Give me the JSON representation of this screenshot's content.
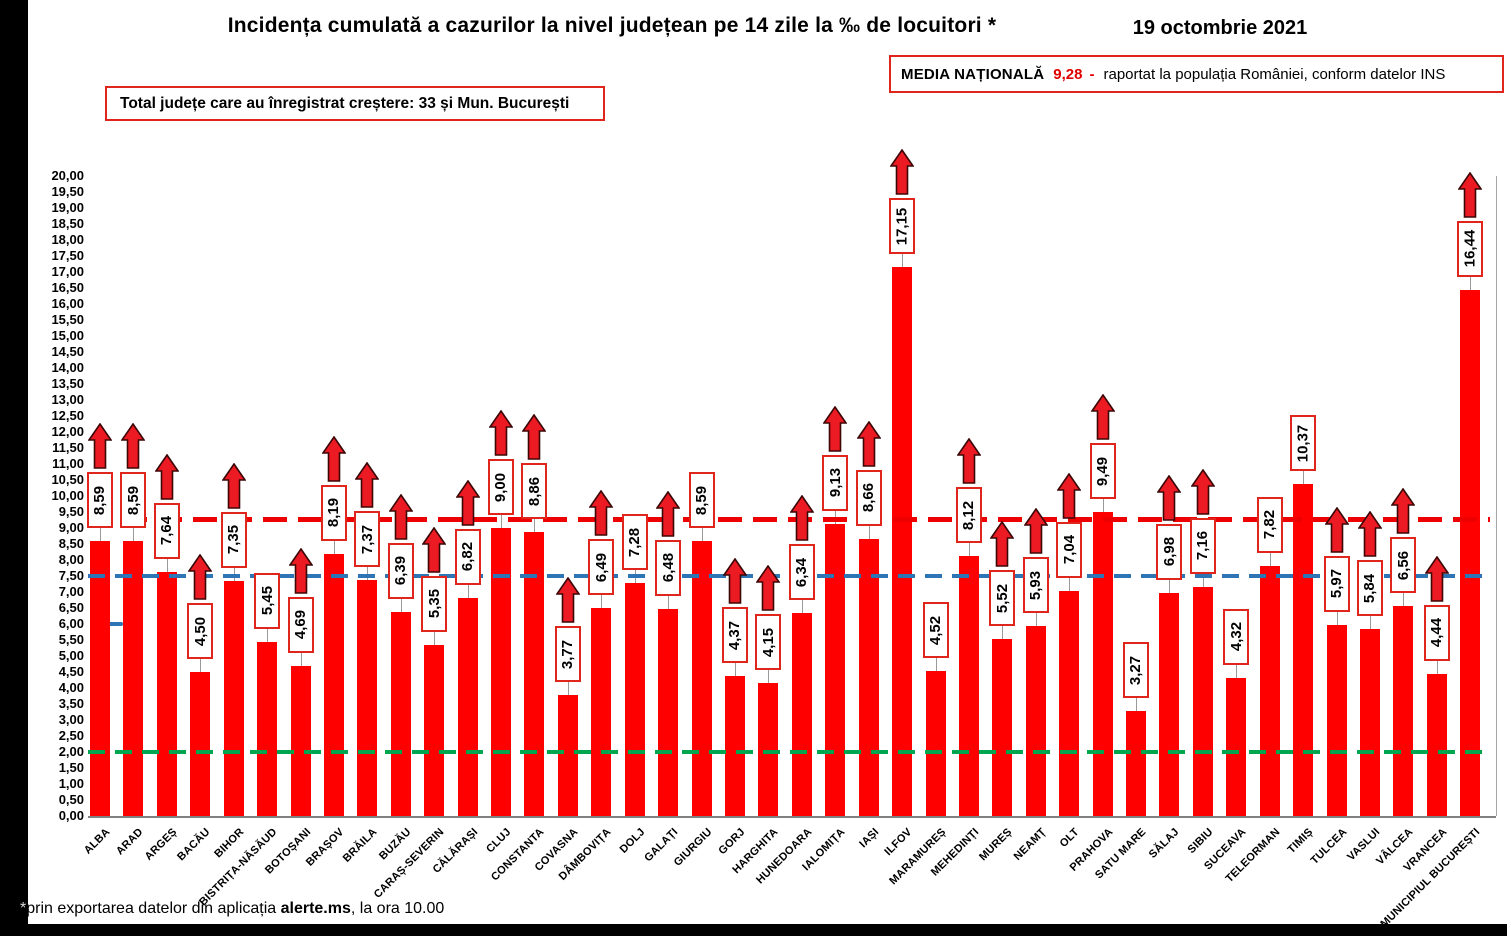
{
  "page": {
    "title": "Incidența cumulată a cazurilor la nivel județean pe 14 zile la ‰ de locuitori *",
    "date": "19 octombrie 2021",
    "national_average": {
      "label": "MEDIA NAȚIONALĂ",
      "value": "9,28",
      "dash": "-",
      "description": "raportat la populația României, conform datelor INS"
    },
    "growth_note": "Total județe care au înregistrat creștere:  33 și Mun. București",
    "footnote_star": "*",
    "footnote_prefix": "prin exportarea datelor din aplicația ",
    "footnote_app": "alerte.ms",
    "footnote_suffix": ", la ora 10.00"
  },
  "chart_data": {
    "type": "bar",
    "title": "Incidența cumulată a cazurilor la nivel județean pe 14 zile la ‰ de locuitori *",
    "categories": [
      "ALBA",
      "ARAD",
      "ARGEȘ",
      "BACĂU",
      "BIHOR",
      "BISTRIȚA-NĂSĂUD",
      "BOTOȘANI",
      "BRAȘOV",
      "BRĂILA",
      "BUZĂU",
      "CARAȘ-SEVERIN",
      "CĂLĂRAȘI",
      "CLUJ",
      "CONSTANTA",
      "COVASNA",
      "DÂMBOVIȚA",
      "DOLJ",
      "GALAȚI",
      "GIURGIU",
      "GORJ",
      "HARGHITA",
      "HUNEDOARA",
      "IALOMIȚA",
      "IAȘI",
      "ILFOV",
      "MARAMUREȘ",
      "MEHEDINȚI",
      "MUREȘ",
      "NEAMȚ",
      "OLT",
      "PRAHOVA",
      "SATU MARE",
      "SĂLAJ",
      "SIBIU",
      "SUCEAVA",
      "TELEORMAN",
      "TIMIȘ",
      "TULCEA",
      "VASLUI",
      "VÂLCEA",
      "VRANCEA",
      "MUNICIPIUL BUCUREȘTI"
    ],
    "values": [
      8.59,
      8.59,
      7.64,
      4.5,
      7.35,
      5.45,
      4.69,
      8.19,
      7.37,
      6.39,
      5.35,
      6.82,
      9.0,
      8.86,
      3.77,
      6.49,
      7.28,
      6.48,
      8.59,
      4.37,
      4.15,
      6.34,
      9.13,
      8.66,
      17.15,
      4.52,
      8.12,
      5.52,
      5.93,
      7.04,
      9.49,
      3.27,
      6.98,
      7.16,
      4.32,
      7.82,
      10.37,
      5.97,
      5.84,
      6.56,
      4.44,
      16.44
    ],
    "value_labels": [
      "8,59",
      "8,59",
      "7,64",
      "4,50",
      "7,35",
      "5,45",
      "4,69",
      "8,19",
      "7,37",
      "6,39",
      "5,35",
      "6,82",
      "9,00",
      "8,86",
      "3,77",
      "6,49",
      "7,28",
      "6,48",
      "8,59",
      "4,37",
      "4,15",
      "6,34",
      "9,13",
      "8,66",
      "17,15",
      "4,52",
      "8,12",
      "5,52",
      "5,93",
      "7,04",
      "9,49",
      "3,27",
      "6,98",
      "7,16",
      "4,32",
      "7,82",
      "10,37",
      "5,97",
      "5,84",
      "6,56",
      "4,44",
      "16,44"
    ],
    "increase_arrows": [
      true,
      true,
      true,
      true,
      true,
      false,
      true,
      true,
      true,
      true,
      true,
      true,
      true,
      true,
      true,
      true,
      false,
      true,
      false,
      true,
      true,
      true,
      true,
      true,
      true,
      false,
      true,
      true,
      true,
      true,
      true,
      false,
      true,
      true,
      false,
      false,
      false,
      true,
      true,
      true,
      true,
      true
    ],
    "bar_color": "#fe0000",
    "xlabel": "",
    "ylabel": "",
    "ylim": [
      0,
      20
    ],
    "ytick_step": 0.5,
    "grid": "off",
    "legend": "none",
    "reference_lines": [
      {
        "name": "media-nationala",
        "value": 9.28,
        "color": "#ee0000",
        "style": "dashed"
      },
      {
        "name": "prag-7-50",
        "value": 7.5,
        "color": "#2e75b6",
        "style": "dashed"
      },
      {
        "name": "prag-2-00",
        "value": 2.0,
        "color": "#00a550",
        "style": "dashed"
      }
    ],
    "stray_blue_marks": {
      "present": true,
      "value": 6.0,
      "color": "#2e75b6"
    }
  }
}
